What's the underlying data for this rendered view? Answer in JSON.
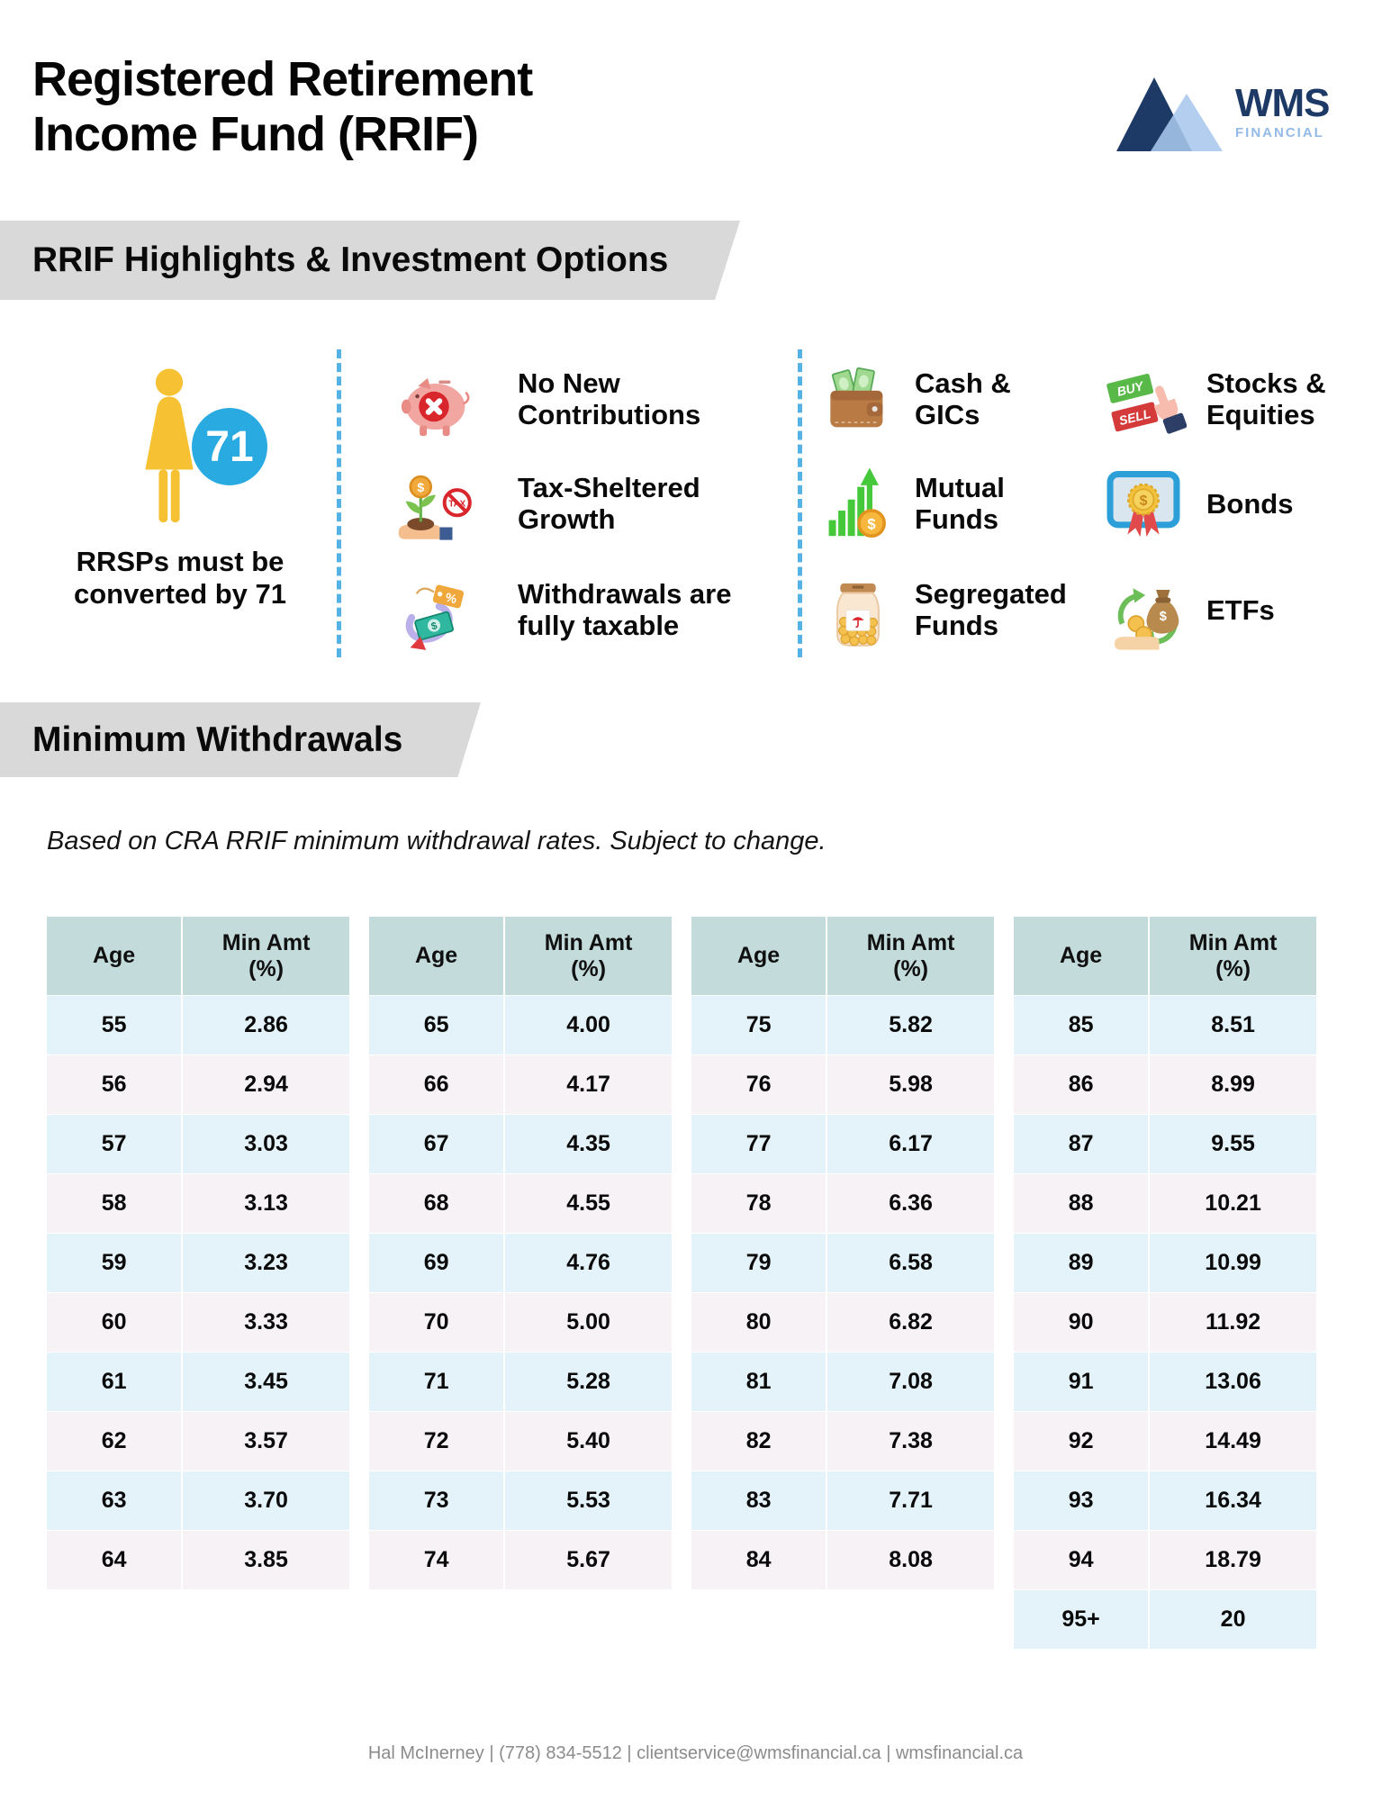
{
  "header": {
    "title": "Registered Retirement\nIncome Fund (RRIF)"
  },
  "logo": {
    "wms": "WMS",
    "financial": "FINANCIAL"
  },
  "sections": {
    "highlights_title": "RRIF Highlights & Investment Options",
    "withdrawals_title": "Minimum Withdrawals",
    "withdrawals_note": "Based on CRA RRIF minimum withdrawal rates. Subject to change."
  },
  "callout": {
    "badge": "71",
    "caption_line1": "RRSPs must be",
    "caption_line2": "converted by 71"
  },
  "features": [
    {
      "icon": "piggy-bank-no-contributions",
      "line1": "No New",
      "line2": "Contributions"
    },
    {
      "icon": "tax-sheltered-growth",
      "line1": "Tax-Sheltered",
      "line2": "Growth"
    },
    {
      "icon": "taxable-withdrawals",
      "line1": "Withdrawals are",
      "line2": "fully taxable"
    }
  ],
  "investments": [
    {
      "icon": "wallet-cash",
      "line1": "Cash &",
      "line2": "GICs"
    },
    {
      "icon": "mutual-funds-chart",
      "line1": "Mutual",
      "line2": "Funds"
    },
    {
      "icon": "segregated-funds-jar",
      "line1": "Segregated",
      "line2": "Funds"
    },
    {
      "icon": "buy-sell-tags",
      "line1": "Stocks &",
      "line2": "Equities"
    },
    {
      "icon": "bond-certificate",
      "line1": "Bonds",
      "line2": ""
    },
    {
      "icon": "etf-money-bag",
      "line1": "ETFs",
      "line2": ""
    }
  ],
  "icon_glyphs": {
    "buy": "BUY",
    "sell": "SELL",
    "tax": "TAX",
    "dollar": "$",
    "percent": "%"
  },
  "table": {
    "columns": {
      "age": "Age",
      "min_line1": "Min Amt",
      "min_line2": "(%)"
    },
    "groups": [
      {
        "rows": [
          [
            "55",
            "2.86"
          ],
          [
            "56",
            "2.94"
          ],
          [
            "57",
            "3.03"
          ],
          [
            "58",
            "3.13"
          ],
          [
            "59",
            "3.23"
          ],
          [
            "60",
            "3.33"
          ],
          [
            "61",
            "3.45"
          ],
          [
            "62",
            "3.57"
          ],
          [
            "63",
            "3.70"
          ],
          [
            "64",
            "3.85"
          ]
        ]
      },
      {
        "rows": [
          [
            "65",
            "4.00"
          ],
          [
            "66",
            "4.17"
          ],
          [
            "67",
            "4.35"
          ],
          [
            "68",
            "4.55"
          ],
          [
            "69",
            "4.76"
          ],
          [
            "70",
            "5.00"
          ],
          [
            "71",
            "5.28"
          ],
          [
            "72",
            "5.40"
          ],
          [
            "73",
            "5.53"
          ],
          [
            "74",
            "5.67"
          ]
        ]
      },
      {
        "rows": [
          [
            "75",
            "5.82"
          ],
          [
            "76",
            "5.98"
          ],
          [
            "77",
            "6.17"
          ],
          [
            "78",
            "6.36"
          ],
          [
            "79",
            "6.58"
          ],
          [
            "80",
            "6.82"
          ],
          [
            "81",
            "7.08"
          ],
          [
            "82",
            "7.38"
          ],
          [
            "83",
            "7.71"
          ],
          [
            "84",
            "8.08"
          ]
        ]
      },
      {
        "rows": [
          [
            "85",
            "8.51"
          ],
          [
            "86",
            "8.99"
          ],
          [
            "87",
            "9.55"
          ],
          [
            "88",
            "10.21"
          ],
          [
            "89",
            "10.99"
          ],
          [
            "90",
            "11.92"
          ],
          [
            "91",
            "13.06"
          ],
          [
            "92",
            "14.49"
          ],
          [
            "93",
            "16.34"
          ],
          [
            "94",
            "18.79"
          ],
          [
            "95+",
            "20"
          ]
        ]
      }
    ]
  },
  "colors": {
    "table_header_bg": "#C3DCDB",
    "row_blue": "#E4F3FA",
    "row_pink": "#F6F2F6",
    "band_gray": "#D9D9D9",
    "divider_blue": "#55B2E5",
    "badge_blue": "#29ABE2",
    "figure_yellow": "#F6C233",
    "logo_navy": "#1D3A66",
    "logo_lightblue": "#93BAE6"
  },
  "footer": {
    "text": "Hal McInerney | (778) 834-5512 | clientservice@wmsfinancial.ca | wmsfinancial.ca"
  }
}
